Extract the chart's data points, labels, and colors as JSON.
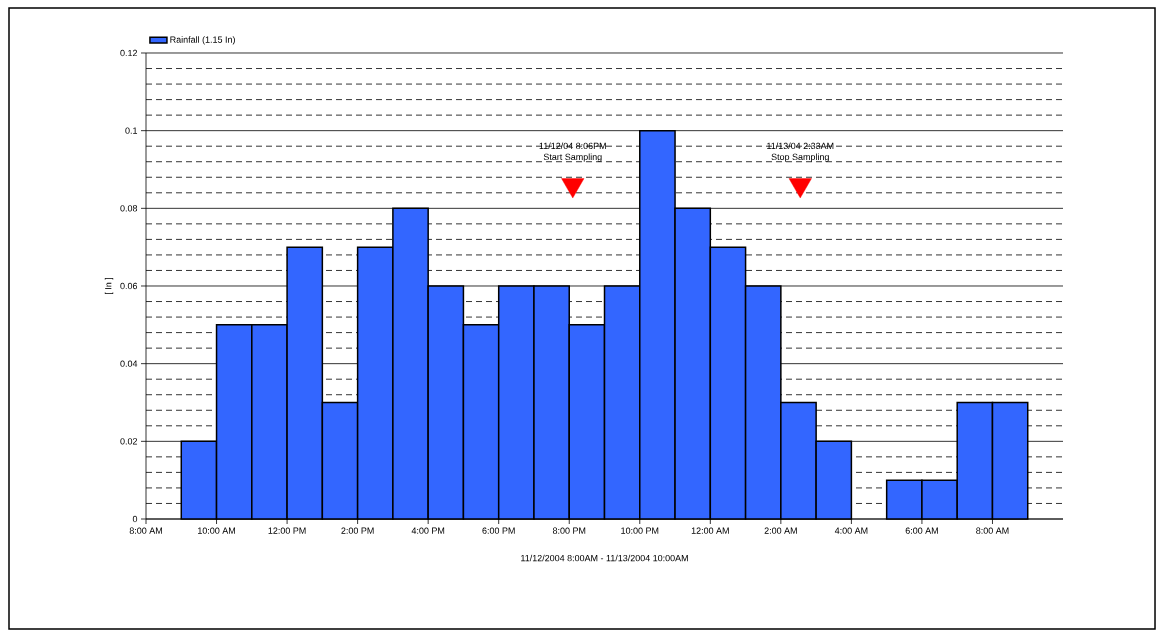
{
  "chart_data": {
    "type": "bar",
    "xlabel": "11/12/2004 8:00AM - 11/13/2004 10:00AM",
    "ylabel": "[ In ]",
    "x": [
      "2004-11-12T09:30",
      "2004-11-12T10:30",
      "2004-11-12T11:30",
      "2004-11-12T12:30",
      "2004-11-12T13:30",
      "2004-11-12T14:30",
      "2004-11-12T15:30",
      "2004-11-12T16:30",
      "2004-11-12T17:30",
      "2004-11-12T18:30",
      "2004-11-12T19:30",
      "2004-11-12T20:30",
      "2004-11-12T21:30",
      "2004-11-12T22:30",
      "2004-11-12T23:30",
      "2004-11-13T00:30",
      "2004-11-13T01:30",
      "2004-11-13T02:30",
      "2004-11-13T03:30",
      "2004-11-13T04:30",
      "2004-11-13T05:30",
      "2004-11-13T06:30",
      "2004-11-13T07:30",
      "2004-11-13T08:30"
    ],
    "series": [
      {
        "name": "Rainfall (1.15 In)",
        "color": "#3366ff",
        "values": [
          0.02,
          0.05,
          0.05,
          0.07,
          0.03,
          0.07,
          0.08,
          0.06,
          0.05,
          0.06,
          0.06,
          0.05,
          0.06,
          0.1,
          0.08,
          0.07,
          0.06,
          0.03,
          0.02,
          null,
          0.01,
          0.01,
          0.03,
          0.03
        ]
      },
      {
        "type": "scatter",
        "marker": "triangle",
        "color": "#ff0000",
        "x": [
          "2004-11-12T20:06",
          "2004-11-13T02:33"
        ],
        "values": [
          0.086,
          0.086
        ]
      }
    ],
    "xlim": [
      "2004-11-12T08:00",
      "2004-11-13T10:00"
    ],
    "ylim": [
      0,
      0.12
    ],
    "xticks": [
      {
        "value": "2004-11-12T08:00",
        "label": "8:00 AM"
      },
      {
        "value": "2004-11-12T10:00",
        "label": "10:00 AM"
      },
      {
        "value": "2004-11-12T12:00",
        "label": "12:00 PM"
      },
      {
        "value": "2004-11-12T14:00",
        "label": "2:00 PM"
      },
      {
        "value": "2004-11-12T16:00",
        "label": "4:00 PM"
      },
      {
        "value": "2004-11-12T18:00",
        "label": "6:00 PM"
      },
      {
        "value": "2004-11-12T20:00",
        "label": "8:00 PM"
      },
      {
        "value": "2004-11-12T22:00",
        "label": "10:00 PM"
      },
      {
        "value": "2004-11-13T00:00",
        "label": "12:00 AM"
      },
      {
        "value": "2004-11-13T02:00",
        "label": "2:00 AM"
      },
      {
        "value": "2004-11-13T04:00",
        "label": "4:00 AM"
      },
      {
        "value": "2004-11-13T06:00",
        "label": "6:00 AM"
      },
      {
        "value": "2004-11-13T08:00",
        "label": "8:00 AM"
      }
    ],
    "yticks": [
      0,
      0.02,
      0.04,
      0.06,
      0.08,
      0.1,
      0.12
    ],
    "annotations": [
      "11/12/04 8:06PM",
      {
        "text": "Start Sampling",
        "x": "2004-11-12T20:06",
        "y": 0.086
      },
      "11/13/04 2:33AM",
      {
        "text": "Stop Sampling",
        "x": "2004-11-13T02:33",
        "y": 0.086
      }
    ],
    "grid": "y",
    "legend": "top left"
  }
}
